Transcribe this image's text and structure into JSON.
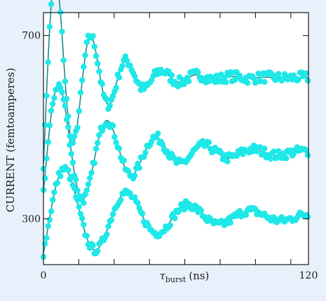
{
  "chart_data": {
    "type": "scatter",
    "title": "",
    "xlabel": {
      "symbol": "τ",
      "subscript": "burst",
      "unit": "(ns)"
    },
    "ylabel": "CURRENT (femtoamperes)",
    "xlim": [
      0,
      120
    ],
    "ylim": [
      200,
      750
    ],
    "x_ticks": [
      {
        "value": 0,
        "label": "0"
      },
      {
        "value": 16,
        "label": ""
      },
      {
        "value": 32,
        "label": ""
      },
      {
        "value": 48,
        "label": ""
      },
      {
        "value": 64,
        "label": ""
      },
      {
        "value": 80,
        "label": ""
      },
      {
        "value": 96,
        "label": ""
      },
      {
        "value": 112,
        "label": ""
      },
      {
        "value": 120,
        "label": "120"
      }
    ],
    "y_ticks": [
      {
        "value": 300,
        "label": "300"
      },
      {
        "value": 700,
        "label": "700"
      }
    ],
    "grid": false,
    "colors": {
      "points": "#1ee8e8",
      "fit_line": "#1c8a8a",
      "axes": "#1a1a1a",
      "plot_background": "#ffffff",
      "page_background": "#e8f0fb"
    },
    "series": [
      {
        "kind": "measured_points",
        "baseline": 608,
        "y0": 420,
        "amplitude": 235,
        "tau": 18,
        "period": 16,
        "phase": 0,
        "noise": 10,
        "x": [
          0,
          0.7,
          1.4,
          2.1,
          2.8,
          3.5,
          4.2,
          4.9,
          5.6,
          6.3,
          7.0,
          7.7,
          8.4,
          9.1,
          9.8,
          10.5,
          11.2,
          11.9,
          12.6,
          13.3,
          14.0,
          14.7,
          15.4,
          16.1,
          16.8,
          17.5,
          18.2,
          18.9,
          19.6,
          20.3,
          21.0,
          21.7,
          22.4,
          23.1,
          23.8,
          24.5,
          25.2,
          25.9,
          26.6,
          27.3,
          28.0,
          28.7,
          29.4,
          30.1,
          30.8,
          31.5,
          32.2,
          32.9,
          33.6,
          34.3,
          35.0,
          35.7,
          36.4,
          37.1,
          37.8,
          38.5,
          39.2,
          39.9,
          40.6,
          41.3,
          42.0,
          42.7,
          43.4,
          44.1,
          44.8,
          45.5,
          46.2,
          46.9,
          47.6,
          48.3,
          49.0,
          49.7,
          50.4,
          51.1,
          51.8,
          52.5,
          53.2,
          53.9,
          54.6,
          55.3,
          56.0,
          56.7,
          57.4,
          58.1,
          58.8,
          59.5,
          60.2,
          60.9,
          61.6,
          62.3,
          63.0,
          63.7,
          64.4,
          65.1,
          65.8,
          66.5,
          67.2,
          67.9,
          68.6,
          69.3,
          70.0,
          70.7,
          71.4,
          72.1,
          72.8,
          73.5,
          74.2,
          74.9,
          75.6,
          76.3,
          77.0,
          77.7,
          78.4,
          79.1,
          79.8,
          80.5,
          81.2,
          81.9,
          82.6,
          83.3,
          84.0,
          84.7,
          85.4,
          86.1,
          86.8,
          87.5,
          88.2,
          88.9,
          89.6,
          90.3,
          91.0,
          91.7,
          92.4,
          93.1,
          93.8,
          94.5,
          95.2,
          95.9,
          96.6,
          97.3,
          98.0,
          98.7,
          99.4,
          100.1,
          100.8,
          101.5,
          102.2,
          102.9,
          103.6,
          104.3,
          105.0,
          105.7,
          106.4,
          107.1,
          107.8,
          108.5,
          109.2,
          109.9,
          110.6,
          111.3,
          112.0,
          112.7,
          113.4,
          114.1,
          114.8,
          115.5,
          116.2,
          116.9,
          117.6,
          118.3,
          119.0,
          119.7
        ]
      },
      {
        "kind": "measured_points",
        "baseline": 444,
        "y0": 360,
        "amplitude": 165,
        "tau": 30,
        "period": 22,
        "phase": 0,
        "noise": 9,
        "x": [
          0,
          0.7,
          1.4,
          2.1,
          2.8,
          3.5,
          4.2,
          4.9,
          5.6,
          6.3,
          7.0,
          7.7,
          8.4,
          9.1,
          9.8,
          10.5,
          11.2,
          11.9,
          12.6,
          13.3,
          14.0,
          14.7,
          15.4,
          16.1,
          16.8,
          17.5,
          18.2,
          18.9,
          19.6,
          20.3,
          21.0,
          21.7,
          22.4,
          23.1,
          23.8,
          24.5,
          25.2,
          25.9,
          26.6,
          27.3,
          28.0,
          28.7,
          29.4,
          30.1,
          30.8,
          31.5,
          32.2,
          32.9,
          33.6,
          34.3,
          35.0,
          35.7,
          36.4,
          37.1,
          37.8,
          38.5,
          39.2,
          39.9,
          40.6,
          41.3,
          42.0,
          42.7,
          43.4,
          44.1,
          44.8,
          45.5,
          46.2,
          46.9,
          47.6,
          48.3,
          49.0,
          49.7,
          50.4,
          51.1,
          51.8,
          52.5,
          53.2,
          53.9,
          54.6,
          55.3,
          56.0,
          56.7,
          57.4,
          58.1,
          58.8,
          59.5,
          60.2,
          60.9,
          61.6,
          62.3,
          63.0,
          63.7,
          64.4,
          65.1,
          65.8,
          66.5,
          67.2,
          67.9,
          68.6,
          69.3,
          70.0,
          70.7,
          71.4,
          72.1,
          72.8,
          73.5,
          74.2,
          74.9,
          75.6,
          76.3,
          77.0,
          77.7,
          78.4,
          79.1,
          79.8,
          80.5,
          81.2,
          81.9,
          82.6,
          83.3,
          84.0,
          84.7,
          85.4,
          86.1,
          86.8,
          87.5,
          88.2,
          88.9,
          89.6,
          90.3,
          91.0,
          91.7,
          92.4,
          93.1,
          93.8,
          94.5,
          95.2,
          95.9,
          96.6,
          97.3,
          98.0,
          98.7,
          99.4,
          100.1,
          100.8,
          101.5,
          102.2,
          102.9,
          103.6,
          104.3,
          105.0,
          105.7,
          106.4,
          107.1,
          107.8,
          108.5,
          109.2,
          109.9,
          110.6,
          111.3,
          112.0,
          112.7,
          113.4,
          114.1,
          114.8,
          115.5,
          116.2,
          116.9,
          117.6,
          118.3,
          119.0,
          119.7
        ]
      },
      {
        "kind": "measured_points",
        "baseline": 305,
        "y0": 225,
        "amplitude": 105,
        "tau": 40,
        "period": 28,
        "phase": 0,
        "noise": 8,
        "x": [
          0,
          0.7,
          1.4,
          2.1,
          2.8,
          3.5,
          4.2,
          4.9,
          5.6,
          6.3,
          7.0,
          7.7,
          8.4,
          9.1,
          9.8,
          10.5,
          11.2,
          11.9,
          12.6,
          13.3,
          14.0,
          14.7,
          15.4,
          16.1,
          16.8,
          17.5,
          18.2,
          18.9,
          19.6,
          20.3,
          21.0,
          21.7,
          22.4,
          23.1,
          23.8,
          24.5,
          25.2,
          25.9,
          26.6,
          27.3,
          28.0,
          28.7,
          29.4,
          30.1,
          30.8,
          31.5,
          32.2,
          32.9,
          33.6,
          34.3,
          35.0,
          35.7,
          36.4,
          37.1,
          37.8,
          38.5,
          39.2,
          39.9,
          40.6,
          41.3,
          42.0,
          42.7,
          43.4,
          44.1,
          44.8,
          45.5,
          46.2,
          46.9,
          47.6,
          48.3,
          49.0,
          49.7,
          50.4,
          51.1,
          51.8,
          52.5,
          53.2,
          53.9,
          54.6,
          55.3,
          56.0,
          56.7,
          57.4,
          58.1,
          58.8,
          59.5,
          60.2,
          60.9,
          61.6,
          62.3,
          63.0,
          63.7,
          64.4,
          65.1,
          65.8,
          66.5,
          67.2,
          67.9,
          68.6,
          69.3,
          70.0,
          70.7,
          71.4,
          72.1,
          72.8,
          73.5,
          74.2,
          74.9,
          75.6,
          76.3,
          77.0,
          77.7,
          78.4,
          79.1,
          79.8,
          80.5,
          81.2,
          81.9,
          82.6,
          83.3,
          84.0,
          84.7,
          85.4,
          86.1,
          86.8,
          87.5,
          88.2,
          88.9,
          89.6,
          90.3,
          91.0,
          91.7,
          92.4,
          93.1,
          93.8,
          94.5,
          95.2,
          95.9,
          96.6,
          97.3,
          98.0,
          98.7,
          99.4,
          100.1,
          100.8,
          101.5,
          102.2,
          102.9,
          103.6,
          104.3,
          105.0,
          105.7,
          106.4,
          107.1,
          107.8,
          108.5,
          109.2,
          109.9,
          110.6,
          111.3,
          112.0,
          112.7,
          113.4,
          114.1,
          114.8,
          115.5,
          116.2,
          116.9,
          117.6,
          118.3,
          119.0,
          119.7
        ]
      }
    ]
  }
}
